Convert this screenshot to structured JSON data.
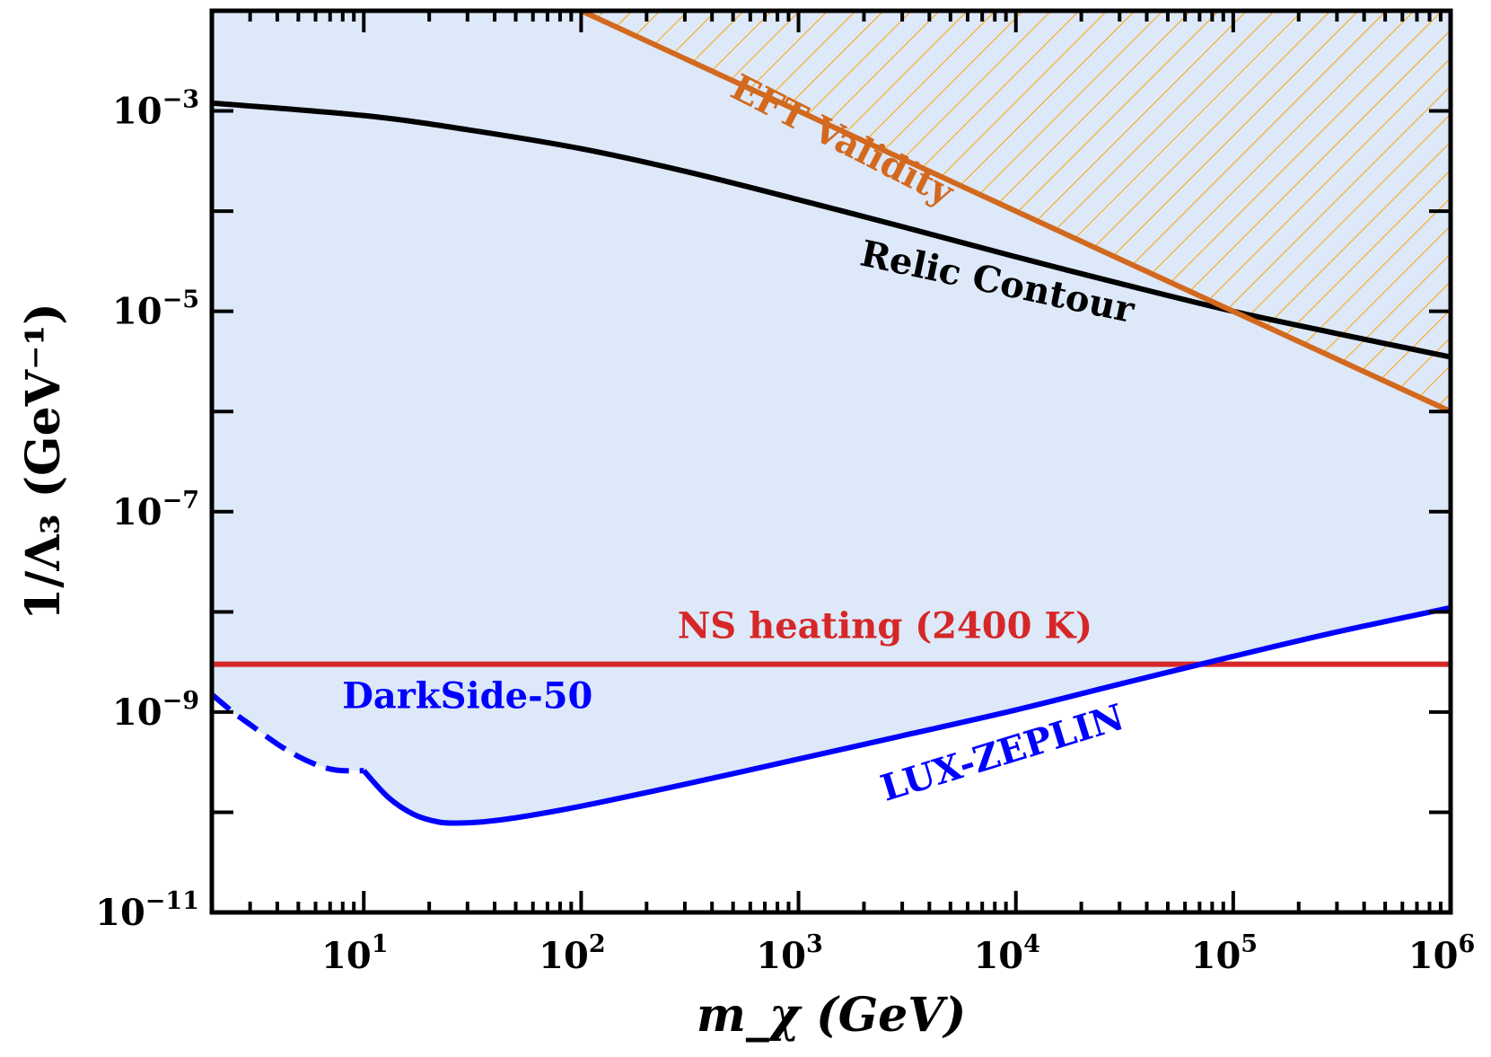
{
  "chart_data": {
    "type": "line",
    "title": "",
    "xlabel": "m_χ (GeV)",
    "ylabel": "1/Λ₃ (GeV⁻¹)",
    "xscale": "log",
    "yscale": "log",
    "xlim": [
      2,
      1000000
    ],
    "ylim": [
      1e-11,
      0.01
    ],
    "grid": false,
    "x_ticks": [
      {
        "value": 10,
        "base": "10",
        "exp": "1"
      },
      {
        "value": 100,
        "base": "10",
        "exp": "2"
      },
      {
        "value": 1000,
        "base": "10",
        "exp": "3"
      },
      {
        "value": 10000,
        "base": "10",
        "exp": "4"
      },
      {
        "value": 100000,
        "base": "10",
        "exp": "5"
      },
      {
        "value": 1000000,
        "base": "10",
        "exp": "6"
      }
    ],
    "y_ticks": [
      {
        "value": 0.001,
        "base": "10",
        "exp": "−3"
      },
      {
        "value": 1e-05,
        "base": "10",
        "exp": "−5"
      },
      {
        "value": 1e-07,
        "base": "10",
        "exp": "−7"
      },
      {
        "value": 1e-09,
        "base": "10",
        "exp": "−9"
      },
      {
        "value": 1e-11,
        "base": "10",
        "exp": "−11"
      }
    ],
    "series": [
      {
        "name": "Relic Contour",
        "color": "#000000",
        "style": "solid",
        "x": [
          2,
          10,
          30,
          100,
          300,
          1000,
          3000,
          10000,
          30000,
          100000,
          300000,
          1000000
        ],
        "y": [
          0.0012,
          0.0009,
          0.00065,
          0.00042,
          0.00025,
          0.00013,
          7e-05,
          3.5e-05,
          1.9e-05,
          1e-05,
          6e-06,
          3.5e-06
        ]
      },
      {
        "name": "EFT Validity",
        "color": "#d2691e",
        "style": "solid",
        "hatch_color": "#ffa500",
        "x": [
          100,
          1000000
        ],
        "y": [
          0.01,
          1e-06
        ]
      },
      {
        "name": "NS heating (2400 K)",
        "color": "#d62728",
        "style": "solid",
        "x": [
          2,
          1000000
        ],
        "y": [
          3e-09,
          3e-09
        ]
      },
      {
        "name": "LUX-ZEPLIN",
        "color": "#0000ff",
        "style": "solid",
        "x": [
          10,
          13,
          17,
          22,
          27,
          35,
          50,
          100,
          300,
          1000,
          3000,
          10000,
          30000,
          100000,
          300000,
          1000000
        ],
        "y": [
          2.6e-10,
          1.4e-10,
          9.5e-11,
          8e-11,
          7.8e-11,
          8e-11,
          8.8e-11,
          1.15e-10,
          1.9e-10,
          3.4e-10,
          5.8e-10,
          1.05e-09,
          1.9e-09,
          3.6e-09,
          6.3e-09,
          1.1e-08
        ]
      },
      {
        "name": "DarkSide-50",
        "color": "#0000ff",
        "style": "dashed",
        "x": [
          2,
          2.5,
          3,
          4,
          5,
          6,
          7,
          8,
          10
        ],
        "y": [
          1.5e-09,
          1e-09,
          7.5e-10,
          4.8e-10,
          3.6e-10,
          3e-10,
          2.7e-10,
          2.6e-10,
          2.6e-10
        ]
      }
    ],
    "shaded_region": {
      "name": "allowed region",
      "color": "#dde8f8",
      "bounded_below_by": [
        "DarkSide-50",
        "LUX-ZEPLIN"
      ]
    },
    "annotations": [
      {
        "text": "EFT Validity",
        "color": "#d2691e",
        "x": 1500,
        "y": 0.0004
      },
      {
        "text": "Relic Contour",
        "color": "#000000",
        "x": 8000,
        "y": 1.5e-05
      },
      {
        "text": "NS heating (2400 K)",
        "color": "#d62728",
        "x": 2500,
        "y": 5.5e-09
      },
      {
        "text": "DarkSide-50",
        "color": "#0000ff",
        "x": 30,
        "y": 1.1e-09
      },
      {
        "text": "LUX-ZEPLIN",
        "color": "#0000ff",
        "x": 9000,
        "y": 3e-10
      }
    ]
  }
}
